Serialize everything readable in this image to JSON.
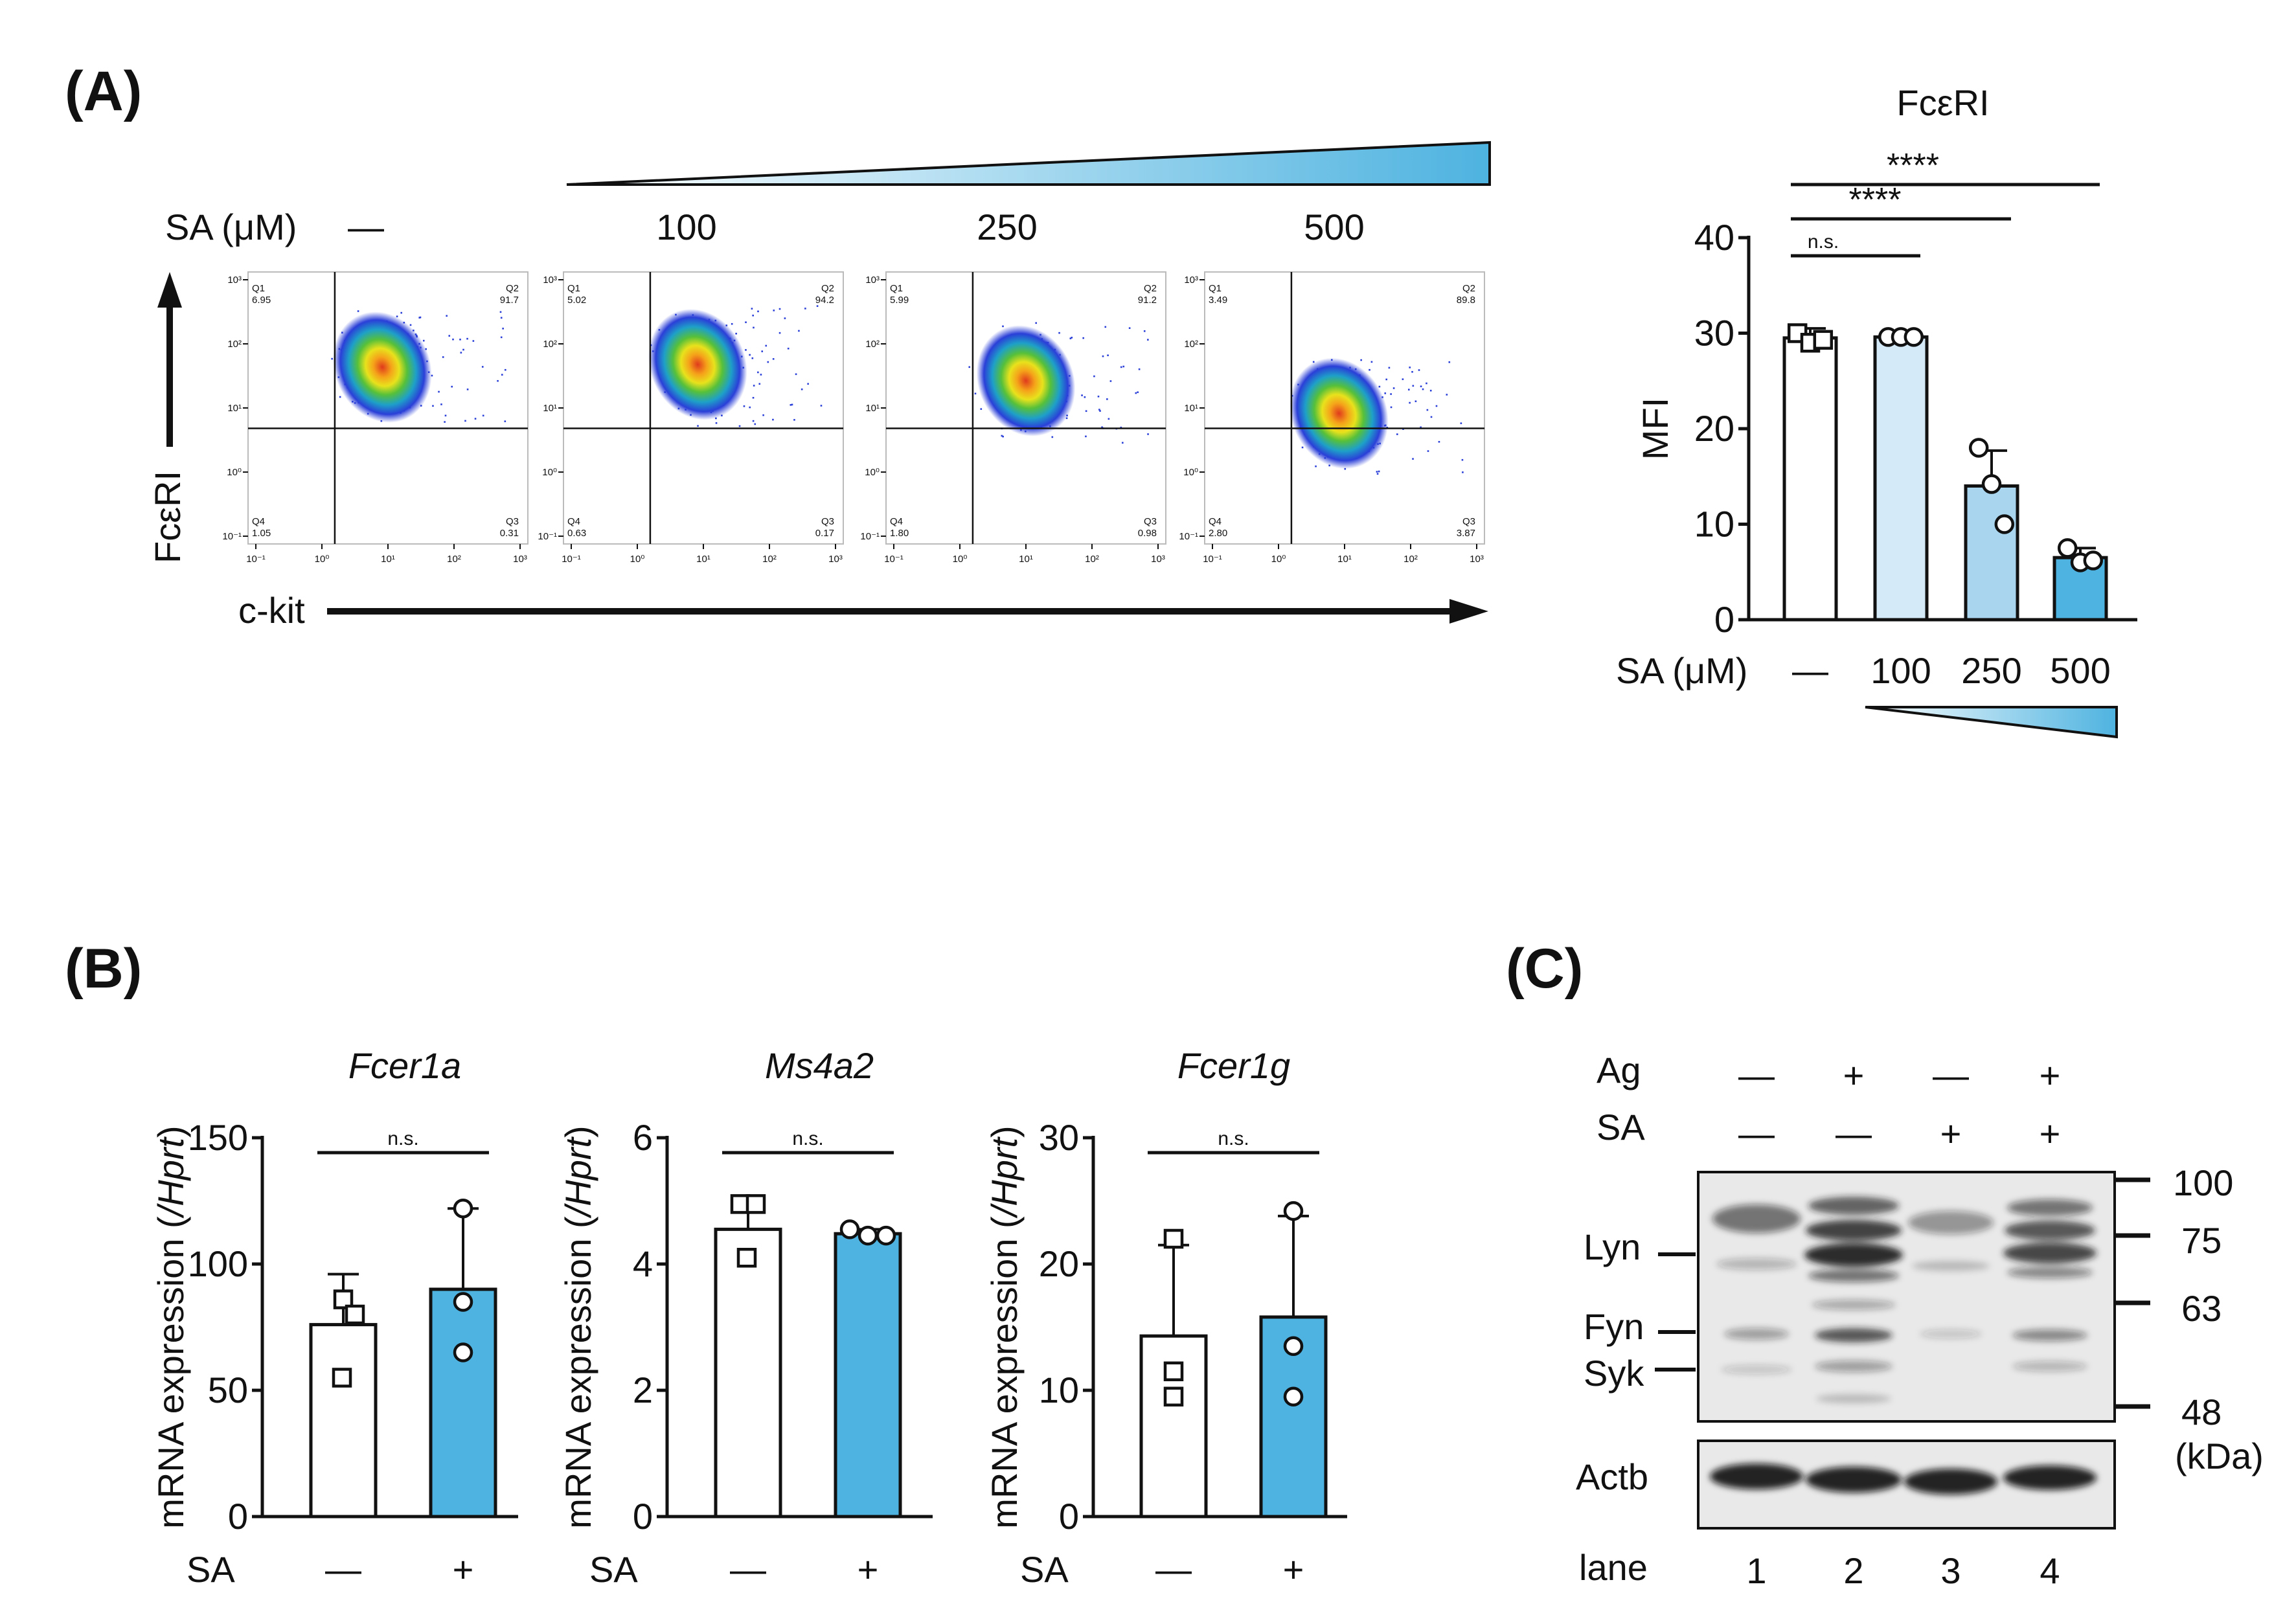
{
  "colors": {
    "text": "#111111",
    "bar_light": "#d4eaf8",
    "bar_mid": "#a9d6ee",
    "bar_blue": "#4eb3e0",
    "bar_white": "#ffffff",
    "blot_bg": "#e9e9e9",
    "band": "#1a1a1a"
  },
  "panel_labels": {
    "a": "(A)",
    "b": "(B)",
    "c": "(C)"
  },
  "panel_a": {
    "dose_label": "SA (μM)",
    "doses": [
      "—",
      "100",
      "250",
      "500"
    ],
    "y_axis_label": "FcεRI",
    "x_axis_label": "c-kit",
    "flow_tick_labels_x": [
      "10⁻¹",
      "10⁰",
      "10¹",
      "10²",
      "10³"
    ],
    "flow_tick_labels_y": [
      "10⁻¹",
      "10⁰",
      "10¹",
      "10²",
      "10³"
    ],
    "plots": [
      {
        "q1": "Q1",
        "q1_val": "6.95",
        "q2": "Q2",
        "q2_val": "91.7",
        "q3": "Q3",
        "q3_val": "0.31",
        "q4": "Q4",
        "q4_val": "1.05"
      },
      {
        "q1": "Q1",
        "q1_val": "5.02",
        "q2": "Q2",
        "q2_val": "94.2",
        "q3": "Q3",
        "q3_val": "0.17",
        "q4": "Q4",
        "q4_val": "0.63"
      },
      {
        "q1": "Q1",
        "q1_val": "5.99",
        "q2": "Q2",
        "q2_val": "91.2",
        "q3": "Q3",
        "q3_val": "0.98",
        "q4": "Q4",
        "q4_val": "1.80"
      },
      {
        "q1": "Q1",
        "q1_val": "3.49",
        "q2": "Q2",
        "q2_val": "89.8",
        "q3": "Q3",
        "q3_val": "3.87",
        "q4": "Q4",
        "q4_val": "2.80"
      }
    ]
  },
  "chart_data": [
    {
      "id": "mfi",
      "type": "bar",
      "title": "FcεRI",
      "ylabel": "MFI",
      "xlabel": "SA (μM)",
      "categories": [
        "—",
        "100",
        "250",
        "500"
      ],
      "values": [
        29.5,
        29.6,
        14.0,
        6.5
      ],
      "errors": [
        1.0,
        0.3,
        3.7,
        1.0
      ],
      "points": [
        [
          30.0,
          29.0,
          29.3
        ],
        [
          29.6,
          29.6,
          29.6
        ],
        [
          18.0,
          14.2,
          10.0
        ],
        [
          7.5,
          6.0,
          6.2
        ]
      ],
      "ylim": [
        0,
        40
      ],
      "yticks": [
        0,
        10,
        20,
        30,
        40
      ],
      "significance": [
        {
          "from": 0,
          "to": 1,
          "label": "n.s."
        },
        {
          "from": 0,
          "to": 2,
          "label": "****"
        },
        {
          "from": 0,
          "to": 3,
          "label": "****"
        }
      ]
    },
    {
      "id": "fcer1a",
      "type": "bar",
      "title": "Fcer1a",
      "ylabel_prefix": "mRNA expression (",
      "ylabel_italic": "/Hprt",
      "ylabel_suffix": ")",
      "xlabel": "SA",
      "categories": [
        "—",
        "+"
      ],
      "values": [
        76,
        90
      ],
      "errors": [
        20,
        32
      ],
      "points": [
        [
          86,
          80,
          55
        ],
        [
          122,
          85,
          65
        ]
      ],
      "ylim": [
        0,
        150
      ],
      "yticks": [
        0,
        50,
        100,
        150
      ],
      "significance": [
        {
          "from": 0,
          "to": 1,
          "label": "n.s."
        }
      ]
    },
    {
      "id": "ms4a2",
      "type": "bar",
      "title": "Ms4a2",
      "ylabel_prefix": "mRNA expression (",
      "ylabel_italic": "/Hprt",
      "ylabel_suffix": ")",
      "xlabel": "SA",
      "categories": [
        "—",
        "+"
      ],
      "values": [
        4.55,
        4.48
      ],
      "errors": [
        0.45,
        0.07
      ],
      "points": [
        [
          4.95,
          4.95,
          4.1
        ],
        [
          4.55,
          4.45,
          4.45
        ]
      ],
      "ylim": [
        0,
        6
      ],
      "yticks": [
        0,
        2,
        4,
        6
      ],
      "significance": [
        {
          "from": 0,
          "to": 1,
          "label": "n.s."
        }
      ]
    },
    {
      "id": "fcer1g",
      "type": "bar",
      "title": "Fcer1g",
      "ylabel_prefix": "mRNA expression (",
      "ylabel_italic": "/Hprt",
      "ylabel_suffix": ")",
      "xlabel": "SA",
      "categories": [
        "—",
        "+"
      ],
      "values": [
        14.3,
        15.8
      ],
      "errors": [
        7.2,
        8.0
      ],
      "points": [
        [
          22.0,
          11.5,
          9.5
        ],
        [
          24.2,
          13.5,
          9.5
        ]
      ],
      "ylim": [
        0,
        30
      ],
      "yticks": [
        0,
        10,
        20,
        30
      ],
      "significance": [
        {
          "from": 0,
          "to": 1,
          "label": "n.s."
        }
      ]
    }
  ],
  "panel_c": {
    "row_labels": [
      "Ag",
      "SA"
    ],
    "conditions": [
      [
        "—",
        "—"
      ],
      [
        "+",
        "—"
      ],
      [
        "—",
        "+"
      ],
      [
        "+",
        "+"
      ]
    ],
    "proteins": [
      "Lyn",
      "Fyn",
      "Syk"
    ],
    "loading_control": "Actb",
    "markers": [
      "100",
      "75",
      "63",
      "48"
    ],
    "marker_unit": "(kDa)",
    "lane_label": "lane",
    "lanes": [
      "1",
      "2",
      "3",
      "4"
    ]
  }
}
